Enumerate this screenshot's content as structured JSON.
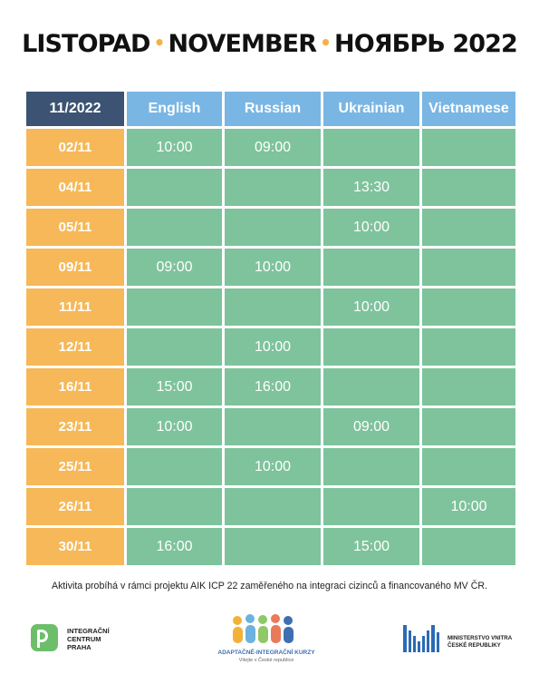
{
  "title": {
    "part1": "LISTOPAD",
    "sep": "•",
    "part2": "NOVEMBER",
    "part3": "НОЯБРЬ 2022"
  },
  "table": {
    "corner": "11/2022",
    "languages": [
      "English",
      "Russian",
      "Ukrainian",
      "Vietnamese"
    ],
    "rows": [
      {
        "date": "02/11",
        "times": [
          "10:00",
          "09:00",
          "",
          ""
        ]
      },
      {
        "date": "04/11",
        "times": [
          "",
          "",
          "13:30",
          ""
        ]
      },
      {
        "date": "05/11",
        "times": [
          "",
          "",
          "10:00",
          ""
        ]
      },
      {
        "date": "09/11",
        "times": [
          "09:00",
          "10:00",
          "",
          ""
        ]
      },
      {
        "date": "11/11",
        "times": [
          "",
          "",
          "10:00",
          ""
        ]
      },
      {
        "date": "12/11",
        "times": [
          "",
          "10:00",
          "",
          ""
        ]
      },
      {
        "date": "16/11",
        "times": [
          "15:00",
          "16:00",
          "",
          ""
        ]
      },
      {
        "date": "23/11",
        "times": [
          "10:00",
          "",
          "09:00",
          ""
        ]
      },
      {
        "date": "25/11",
        "times": [
          "",
          "10:00",
          "",
          ""
        ]
      },
      {
        "date": "26/11",
        "times": [
          "",
          "",
          "",
          "10:00"
        ]
      },
      {
        "date": "30/11",
        "times": [
          "16:00",
          "",
          "15:00",
          ""
        ]
      }
    ]
  },
  "footnote": "Aktivita probíhá v rámci projektu AIK ICP 22 zaměřeného na integraci cizinců a financovaného MV ČR.",
  "logos": {
    "icp": {
      "line1": "INTEGRAČNÍ",
      "line2": "CENTRUM",
      "line3": "PRAHA"
    },
    "aik": {
      "line1": "ADAPTAČNĚ-INTEGRAČNÍ KURZY",
      "line2": "Vítejte v České republice"
    },
    "mv": {
      "line1": "MINISTERSTVO VNITRA",
      "line2": "ČESKÉ REPUBLIKY"
    }
  },
  "colors": {
    "header_dark": "#3c5373",
    "header_blue": "#79b6e4",
    "date_orange": "#f6b858",
    "cell_green": "#7ec39c",
    "title_dot": "#f6b044"
  }
}
